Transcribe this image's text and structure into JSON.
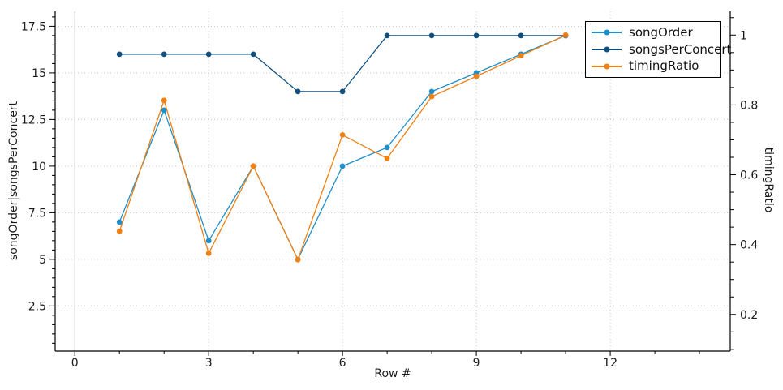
{
  "chart_data": {
    "type": "line",
    "title": "",
    "xlabel": "Row #",
    "ylabel_left": "songOrder|songsPerConcert",
    "ylabel_right": "timingRatio",
    "x": [
      1,
      2,
      3,
      4,
      5,
      6,
      7,
      8,
      9,
      10,
      11
    ],
    "series": [
      {
        "name": "songOrder",
        "axis": "left",
        "color": "#1e8fca",
        "marker": "circle",
        "values": [
          7,
          13,
          6,
          10,
          5,
          10,
          11,
          14,
          15,
          16,
          17
        ]
      },
      {
        "name": "songsPerConcert",
        "axis": "left",
        "color": "#11507e",
        "marker": "circle",
        "values": [
          16,
          16,
          16,
          16,
          14,
          14,
          17,
          17,
          17,
          17,
          17
        ]
      },
      {
        "name": "timingRatio",
        "axis": "right",
        "color": "#f08012",
        "marker": "circle",
        "values": [
          0.438,
          0.813,
          0.375,
          0.625,
          0.357,
          0.714,
          0.647,
          0.824,
          0.882,
          0.941,
          1.0
        ]
      }
    ],
    "x_axis": {
      "major_ticks": [
        {
          "v": 0,
          "label": "0"
        },
        {
          "v": 3,
          "label": "3"
        },
        {
          "v": 6,
          "label": "6"
        },
        {
          "v": 9,
          "label": "9"
        },
        {
          "v": 12,
          "label": "12"
        }
      ],
      "minor_ticks": [
        1,
        2,
        4,
        5,
        7,
        8,
        10,
        11,
        13,
        14
      ],
      "lim": [
        -0.44,
        14.69
      ]
    },
    "y_axis_left": {
      "major_ticks": [
        {
          "v": 2.5,
          "label": "2.5"
        },
        {
          "v": 5,
          "label": "5"
        },
        {
          "v": 7.5,
          "label": "7.5"
        },
        {
          "v": 10,
          "label": "10"
        },
        {
          "v": 12.5,
          "label": "12.5"
        },
        {
          "v": 15,
          "label": "15"
        },
        {
          "v": 17.5,
          "label": "17.5"
        }
      ],
      "minor_step": 0.5,
      "lim": [
        0.08,
        18.3
      ]
    },
    "y_axis_right": {
      "major_ticks": [
        {
          "v": 0.2,
          "label": "0.2"
        },
        {
          "v": 0.4,
          "label": "0.4"
        },
        {
          "v": 0.6,
          "label": "0.6"
        },
        {
          "v": 0.8,
          "label": "0.8"
        },
        {
          "v": 1,
          "label": "1"
        }
      ],
      "minor_step": 0.05,
      "lim": [
        0.095,
        1.068
      ]
    },
    "grid": "dotted horizontal at left-axis majors, vertical at x majors, solid light line at x=0",
    "legend_position": "top-right",
    "colors": {
      "grid": "#c6c6c6",
      "zero_gridline": "#c0c0c0",
      "axis": "#000000",
      "tick_text": "#1a1a1a",
      "background": "#ffffff"
    }
  }
}
